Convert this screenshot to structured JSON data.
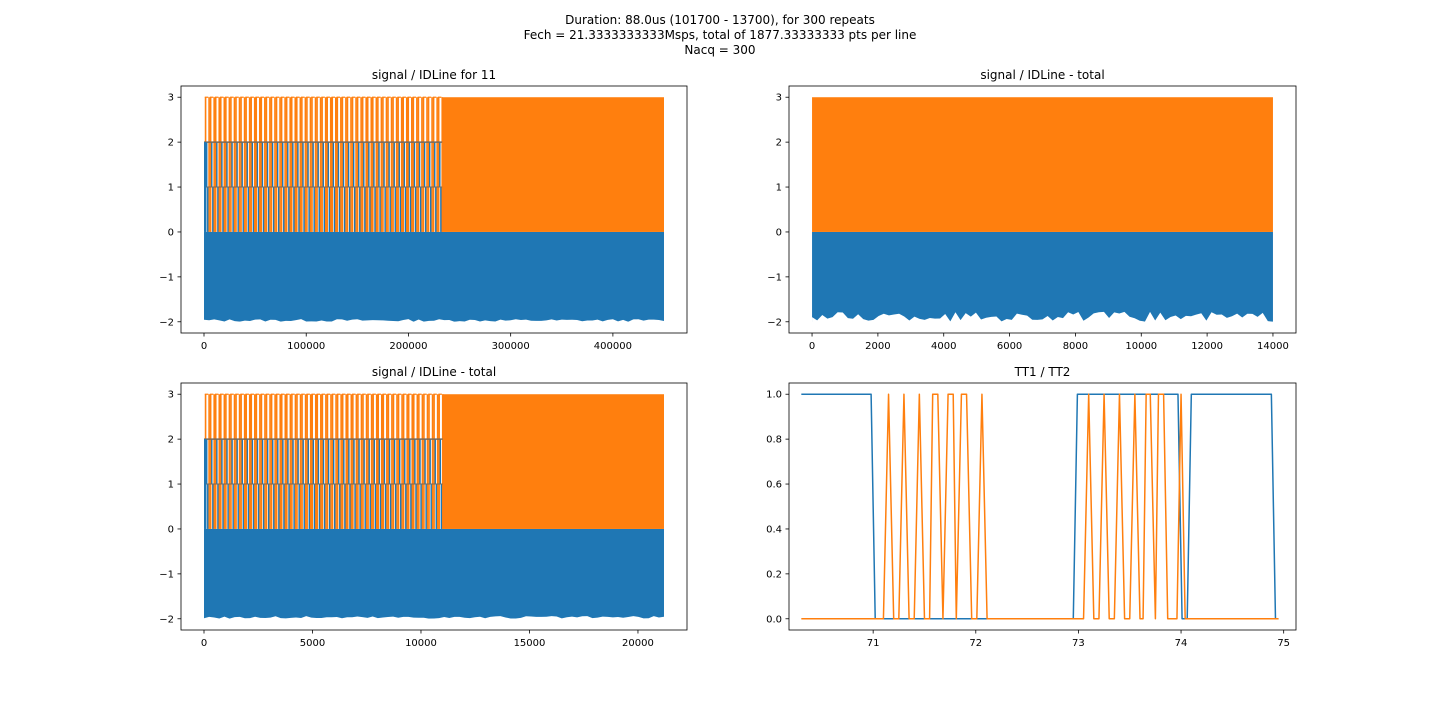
{
  "figure": {
    "suptitle": [
      "Duration: 88.0us (101700 - 13700), for 300 repeats",
      "Fech = 21.3333333333Msps, total of 1877.33333333 pts per line",
      "Nacq = 300"
    ]
  },
  "colors": {
    "blue": "#1f77b4",
    "orange": "#ff7f0e"
  },
  "chart_data": [
    {
      "type": "area",
      "title": "signal / IDLine for 11",
      "xlim": [
        -22500,
        472500
      ],
      "ylim": [
        -2.25,
        3.25
      ],
      "xticks": [
        0,
        100000,
        200000,
        300000,
        400000
      ],
      "xtick_labels": [
        "0",
        "100000",
        "200000",
        "300000",
        "400000"
      ],
      "yticks": [
        -2,
        -1,
        0,
        1,
        2,
        3
      ],
      "ytick_labels": [
        "−2",
        "−1",
        "0",
        "1",
        "2",
        "3"
      ],
      "series": [
        {
          "name": "signal",
          "color": "#1f77b4",
          "band": [
            -2,
            0
          ],
          "upper_band": [
            0,
            2
          ],
          "x_range": [
            0,
            233000
          ],
          "fill_x_range": [
            0,
            450000
          ]
        },
        {
          "name": "IDLine",
          "color": "#ff7f0e",
          "band": [
            0,
            3
          ],
          "pulse_x_range": [
            0,
            233000
          ],
          "pulse_count": 47,
          "pulse_top": 3,
          "fill_x_range": [
            233000,
            450000
          ]
        }
      ]
    },
    {
      "type": "area",
      "title": "signal / IDLine - total",
      "xlim": [
        -700,
        14700
      ],
      "ylim": [
        -2.25,
        3.25
      ],
      "xticks": [
        0,
        2000,
        4000,
        6000,
        8000,
        10000,
        12000,
        14000
      ],
      "xtick_labels": [
        "0",
        "2000",
        "4000",
        "6000",
        "8000",
        "10000",
        "12000",
        "14000"
      ],
      "yticks": [
        -2,
        -1,
        0,
        1,
        2,
        3
      ],
      "ytick_labels": [
        "−2",
        "−1",
        "0",
        "1",
        "2",
        "3"
      ],
      "series": [
        {
          "name": "signal",
          "color": "#1f77b4",
          "band": [
            -2,
            0
          ],
          "fill_x_range": [
            0,
            14000
          ]
        },
        {
          "name": "IDLine",
          "color": "#ff7f0e",
          "band": [
            0,
            3
          ],
          "fill_x_range": [
            0,
            14000
          ]
        }
      ]
    },
    {
      "type": "area",
      "title": "signal / IDLine - total",
      "xlim": [
        -1060,
        22260
      ],
      "ylim": [
        -2.25,
        3.25
      ],
      "xticks": [
        0,
        5000,
        10000,
        15000,
        20000
      ],
      "xtick_labels": [
        "0",
        "5000",
        "10000",
        "15000",
        "20000"
      ],
      "yticks": [
        -2,
        -1,
        0,
        1,
        2,
        3
      ],
      "ytick_labels": [
        "−2",
        "−1",
        "0",
        "1",
        "2",
        "3"
      ],
      "series": [
        {
          "name": "signal",
          "color": "#1f77b4",
          "band": [
            -2,
            0
          ],
          "upper_band": [
            0,
            2
          ],
          "x_range": [
            0,
            11000
          ],
          "fill_x_range": [
            0,
            21200
          ]
        },
        {
          "name": "IDLine",
          "color": "#ff7f0e",
          "band": [
            0,
            3
          ],
          "pulse_x_range": [
            0,
            11000
          ],
          "pulse_count": 47,
          "pulse_top": 3,
          "fill_x_range": [
            11000,
            21200
          ]
        }
      ]
    },
    {
      "type": "line",
      "title": "TT1 / TT2",
      "xlim": [
        70.18,
        75.12
      ],
      "ylim": [
        -0.05,
        1.05
      ],
      "xticks": [
        71,
        72,
        73,
        74,
        75
      ],
      "xtick_labels": [
        "71",
        "72",
        "73",
        "74",
        "75"
      ],
      "yticks": [
        0,
        0.2,
        0.4,
        0.6,
        0.8,
        1.0
      ],
      "ytick_labels": [
        "0.0",
        "0.2",
        "0.4",
        "0.6",
        "0.8",
        "1.0"
      ],
      "series": [
        {
          "name": "TT1",
          "color": "#1f77b4",
          "x": [
            70.3,
            70.98,
            71.02,
            72.95,
            72.99,
            73.97,
            74.01,
            74.06,
            74.1,
            74.88,
            74.92,
            74.95
          ],
          "y": [
            1,
            1,
            0,
            0,
            1,
            1,
            0,
            0,
            1,
            1,
            0,
            0
          ]
        },
        {
          "name": "TT2",
          "color": "#ff7f0e",
          "x": [
            70.3,
            71.1,
            71.15,
            71.2,
            71.25,
            71.3,
            71.35,
            71.4,
            71.45,
            71.5,
            71.55,
            71.58,
            71.63,
            71.68,
            71.73,
            71.78,
            71.81,
            71.86,
            71.91,
            71.96,
            72.01,
            72.06,
            72.11,
            72.16,
            73.05,
            73.1,
            73.15,
            73.2,
            73.25,
            73.3,
            73.35,
            73.4,
            73.45,
            73.5,
            73.55,
            73.6,
            73.63,
            73.66,
            73.7,
            73.75,
            73.78,
            73.83,
            73.87,
            73.92,
            73.96,
            74.0,
            74.04,
            74.95
          ],
          "y": [
            0,
            0,
            1,
            0,
            0,
            1,
            0,
            0,
            1,
            0,
            0,
            1,
            1,
            0,
            1,
            1,
            0,
            1,
            1,
            0,
            0,
            1,
            0,
            0,
            0,
            1,
            0,
            0,
            1,
            0,
            0,
            1,
            0,
            0,
            1,
            0,
            0,
            1,
            1,
            0,
            1,
            1,
            0,
            0,
            0,
            1,
            0,
            0
          ]
        }
      ]
    }
  ]
}
